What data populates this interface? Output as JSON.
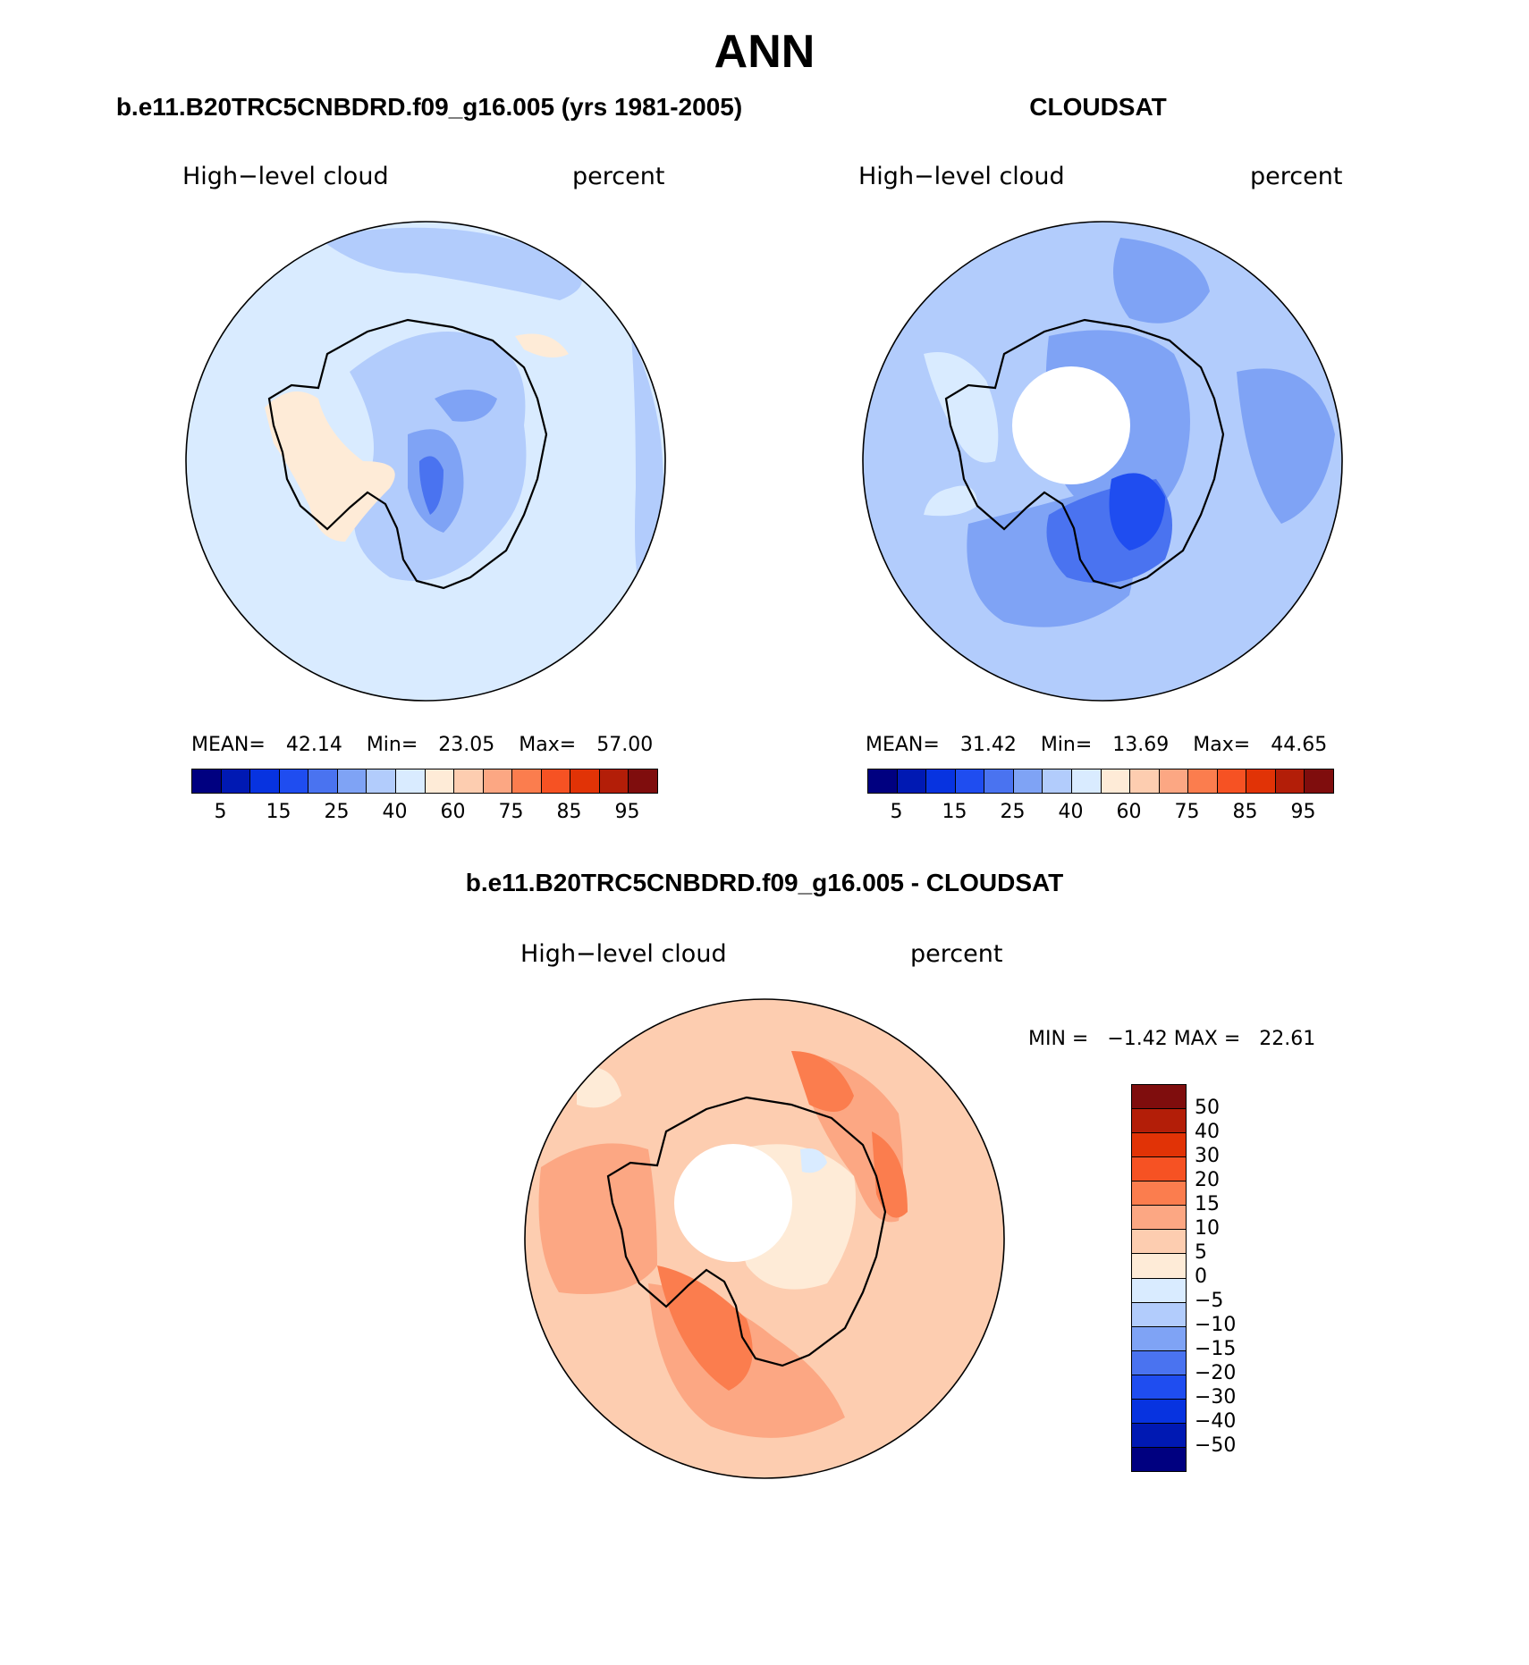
{
  "title": "ANN",
  "panels": [
    {
      "header": "b.e11.B20TRC5CNBDRD.f09_g16.005 (yrs 1981-2005)",
      "variable": "High−level cloud",
      "units": "percent",
      "stats": {
        "mean_label": "MEAN=",
        "mean": "42.14",
        "min_label": "Min=",
        "min": "23.05",
        "max_label": "Max=",
        "max": "57.00"
      }
    },
    {
      "header": "CLOUDSAT",
      "variable": "High−level cloud",
      "units": "percent",
      "stats": {
        "mean_label": "MEAN=",
        "mean": "31.42",
        "min_label": "Min=",
        "min": "13.69",
        "max_label": "Max=",
        "max": "44.65"
      }
    }
  ],
  "diff_panel": {
    "header": "b.e11.B20TRC5CNBDRD.f09_g16.005 - CLOUDSAT",
    "variable": "High−level cloud",
    "units": "percent",
    "minmax": "MIN =   −1.42 MAX =   22.61"
  },
  "colorbar_h": {
    "colors": [
      "#000080",
      "#0019b3",
      "#0733e0",
      "#1f4df0",
      "#4a73f0",
      "#7fa3f5",
      "#b2ccfc",
      "#d9ebff",
      "#feebd7",
      "#fdcdb0",
      "#fca783",
      "#fb7d4e",
      "#f65223",
      "#e13306",
      "#b31e08",
      "#7f0d0d"
    ],
    "labels": [
      "5",
      "15",
      "25",
      "40",
      "60",
      "75",
      "85",
      "95"
    ]
  },
  "colorbar_v": {
    "colors": [
      "#7f0d0d",
      "#b31e08",
      "#e13306",
      "#f65223",
      "#fb7d4e",
      "#fca783",
      "#fdcdb0",
      "#feebd7",
      "#d9ebff",
      "#b2ccfc",
      "#7fa3f5",
      "#4a73f0",
      "#1f4df0",
      "#0733e0",
      "#0019b3",
      "#000080"
    ],
    "labels": [
      "50",
      "40",
      "30",
      "20",
      "15",
      "10",
      "5",
      "0",
      "−5",
      "−10",
      "−15",
      "−20",
      "−30",
      "−40",
      "−50"
    ]
  },
  "map_colors": {
    "p1_base": "#d9ebff",
    "p1_mid": "#b2ccfc",
    "p1_dark": "#7fa3f5",
    "p1_warm": "#feebd7",
    "p2_base": "#b2ccfc",
    "p2_mid": "#7fa3f5",
    "p2_dark": "#4a73f0",
    "p2_deep": "#1f4df0",
    "p2_light": "#d9ebff",
    "d_base": "#fdcdb0",
    "d_mid": "#fca783",
    "d_hot": "#fb7d4e",
    "d_light": "#feebd7",
    "d_cool": "#d9ebff"
  }
}
